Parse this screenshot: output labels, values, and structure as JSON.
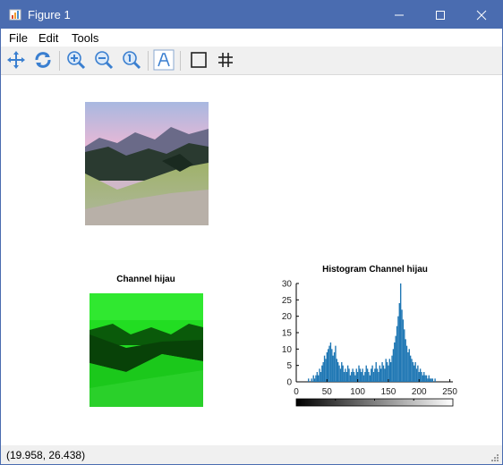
{
  "window": {
    "title": "Figure 1",
    "accent": "#4a6cb0"
  },
  "menu": {
    "items": [
      "File",
      "Edit",
      "Tools"
    ]
  },
  "toolbar": {
    "icons": [
      "pan-icon",
      "rotate-icon",
      "zoom-in-icon",
      "zoom-out-icon",
      "zoom-reset-icon",
      "text-insert-icon",
      "box-toggle-icon",
      "grid-toggle-icon"
    ]
  },
  "status": {
    "coordinates": "(19.958, 26.438)"
  },
  "plots": {
    "channel_title": "Channel hijau",
    "histogram_title": "Histogram Channel hijau"
  },
  "chart_data": {
    "type": "bar",
    "title": "Histogram Channel hijau",
    "xlabel": "",
    "ylabel": "",
    "xlim": [
      0,
      255
    ],
    "ylim": [
      0,
      30
    ],
    "x_ticks": [
      0,
      50,
      100,
      150,
      200,
      250
    ],
    "y_ticks": [
      0,
      5,
      10,
      15,
      20,
      25,
      30
    ],
    "bar_color": "#1f77b4",
    "colorbar": "grayscale",
    "x": [
      20,
      25,
      28,
      30,
      32,
      34,
      36,
      38,
      40,
      42,
      44,
      46,
      48,
      50,
      52,
      54,
      56,
      58,
      60,
      62,
      64,
      66,
      68,
      70,
      72,
      74,
      76,
      78,
      80,
      82,
      84,
      86,
      88,
      90,
      92,
      94,
      96,
      98,
      100,
      102,
      104,
      106,
      108,
      110,
      112,
      114,
      116,
      118,
      120,
      122,
      124,
      126,
      128,
      130,
      132,
      134,
      136,
      138,
      140,
      142,
      144,
      146,
      148,
      150,
      152,
      154,
      156,
      158,
      160,
      162,
      164,
      166,
      168,
      170,
      172,
      174,
      176,
      178,
      180,
      182,
      184,
      186,
      188,
      190,
      192,
      194,
      196,
      198,
      200,
      202,
      204,
      206,
      208,
      210,
      212,
      214,
      216,
      218,
      220,
      222,
      224,
      226,
      228
    ],
    "values": [
      1,
      1,
      2,
      1,
      2,
      3,
      2,
      4,
      3,
      5,
      6,
      8,
      7,
      9,
      10,
      11,
      12,
      10,
      8,
      9,
      11,
      7,
      6,
      5,
      4,
      6,
      5,
      3,
      4,
      3,
      5,
      4,
      2,
      3,
      4,
      3,
      2,
      4,
      3,
      5,
      4,
      3,
      4,
      2,
      3,
      5,
      4,
      3,
      2,
      4,
      5,
      3,
      4,
      6,
      4,
      3,
      5,
      4,
      6,
      5,
      4,
      7,
      6,
      5,
      7,
      6,
      8,
      10,
      12,
      14,
      17,
      20,
      24,
      30,
      22,
      19,
      16,
      13,
      11,
      9,
      10,
      8,
      7,
      6,
      5,
      6,
      4,
      5,
      3,
      4,
      3,
      2,
      3,
      2,
      2,
      1,
      2,
      1,
      1,
      1,
      0,
      1,
      0
    ]
  }
}
